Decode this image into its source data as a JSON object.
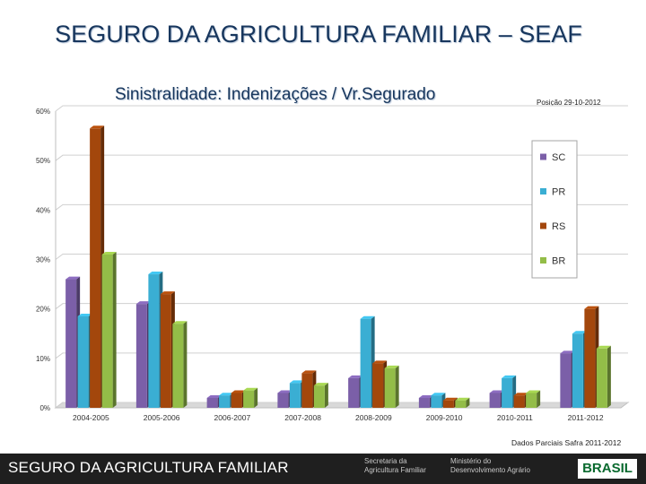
{
  "header": {
    "title": "SEGURO DA AGRICULTURA FAMILIAR – SEAF",
    "subtitle": "Sinistralidade: Indenizações / Vr.Segurado",
    "date_note": "Posição 29-10-2012"
  },
  "source_note": "Dados Parciais Safra 2011-2012",
  "footer": {
    "text": "SEGURO DA AGRICULTURA FAMILIAR",
    "logo_left": [
      "Secretaria da",
      "Agricultura Familiar"
    ],
    "logo_right": [
      "Ministério do",
      "Desenvolvimento Agrário"
    ],
    "brasil": "BRASIL"
  },
  "chart_data": {
    "type": "bar",
    "style": "3d-clustered",
    "categories": [
      "2004-2005",
      "2005-2006",
      "2006-2007",
      "2007-2008",
      "2008-2009",
      "2009-2010",
      "2010-2011",
      "2011-2012"
    ],
    "series": [
      {
        "name": "SC",
        "color": "#7b5fa8",
        "values": [
          26,
          21,
          2,
          3,
          6,
          2,
          3,
          11
        ]
      },
      {
        "name": "PR",
        "color": "#3aaed3",
        "values": [
          18.5,
          27,
          2.5,
          5,
          18,
          2.5,
          6,
          15
        ]
      },
      {
        "name": "RS",
        "color": "#a3470c",
        "values": [
          56.5,
          23,
          3,
          7,
          9,
          1.5,
          2.5,
          20
        ]
      },
      {
        "name": "BR",
        "color": "#93bd48",
        "values": [
          31,
          17,
          3.5,
          4.5,
          8,
          1.5,
          3,
          12
        ]
      }
    ],
    "ylim": [
      0,
      60
    ],
    "yticks": [
      "0%",
      "10%",
      "20%",
      "30%",
      "40%",
      "50%",
      "60%"
    ],
    "grid": true,
    "legend": "right"
  }
}
